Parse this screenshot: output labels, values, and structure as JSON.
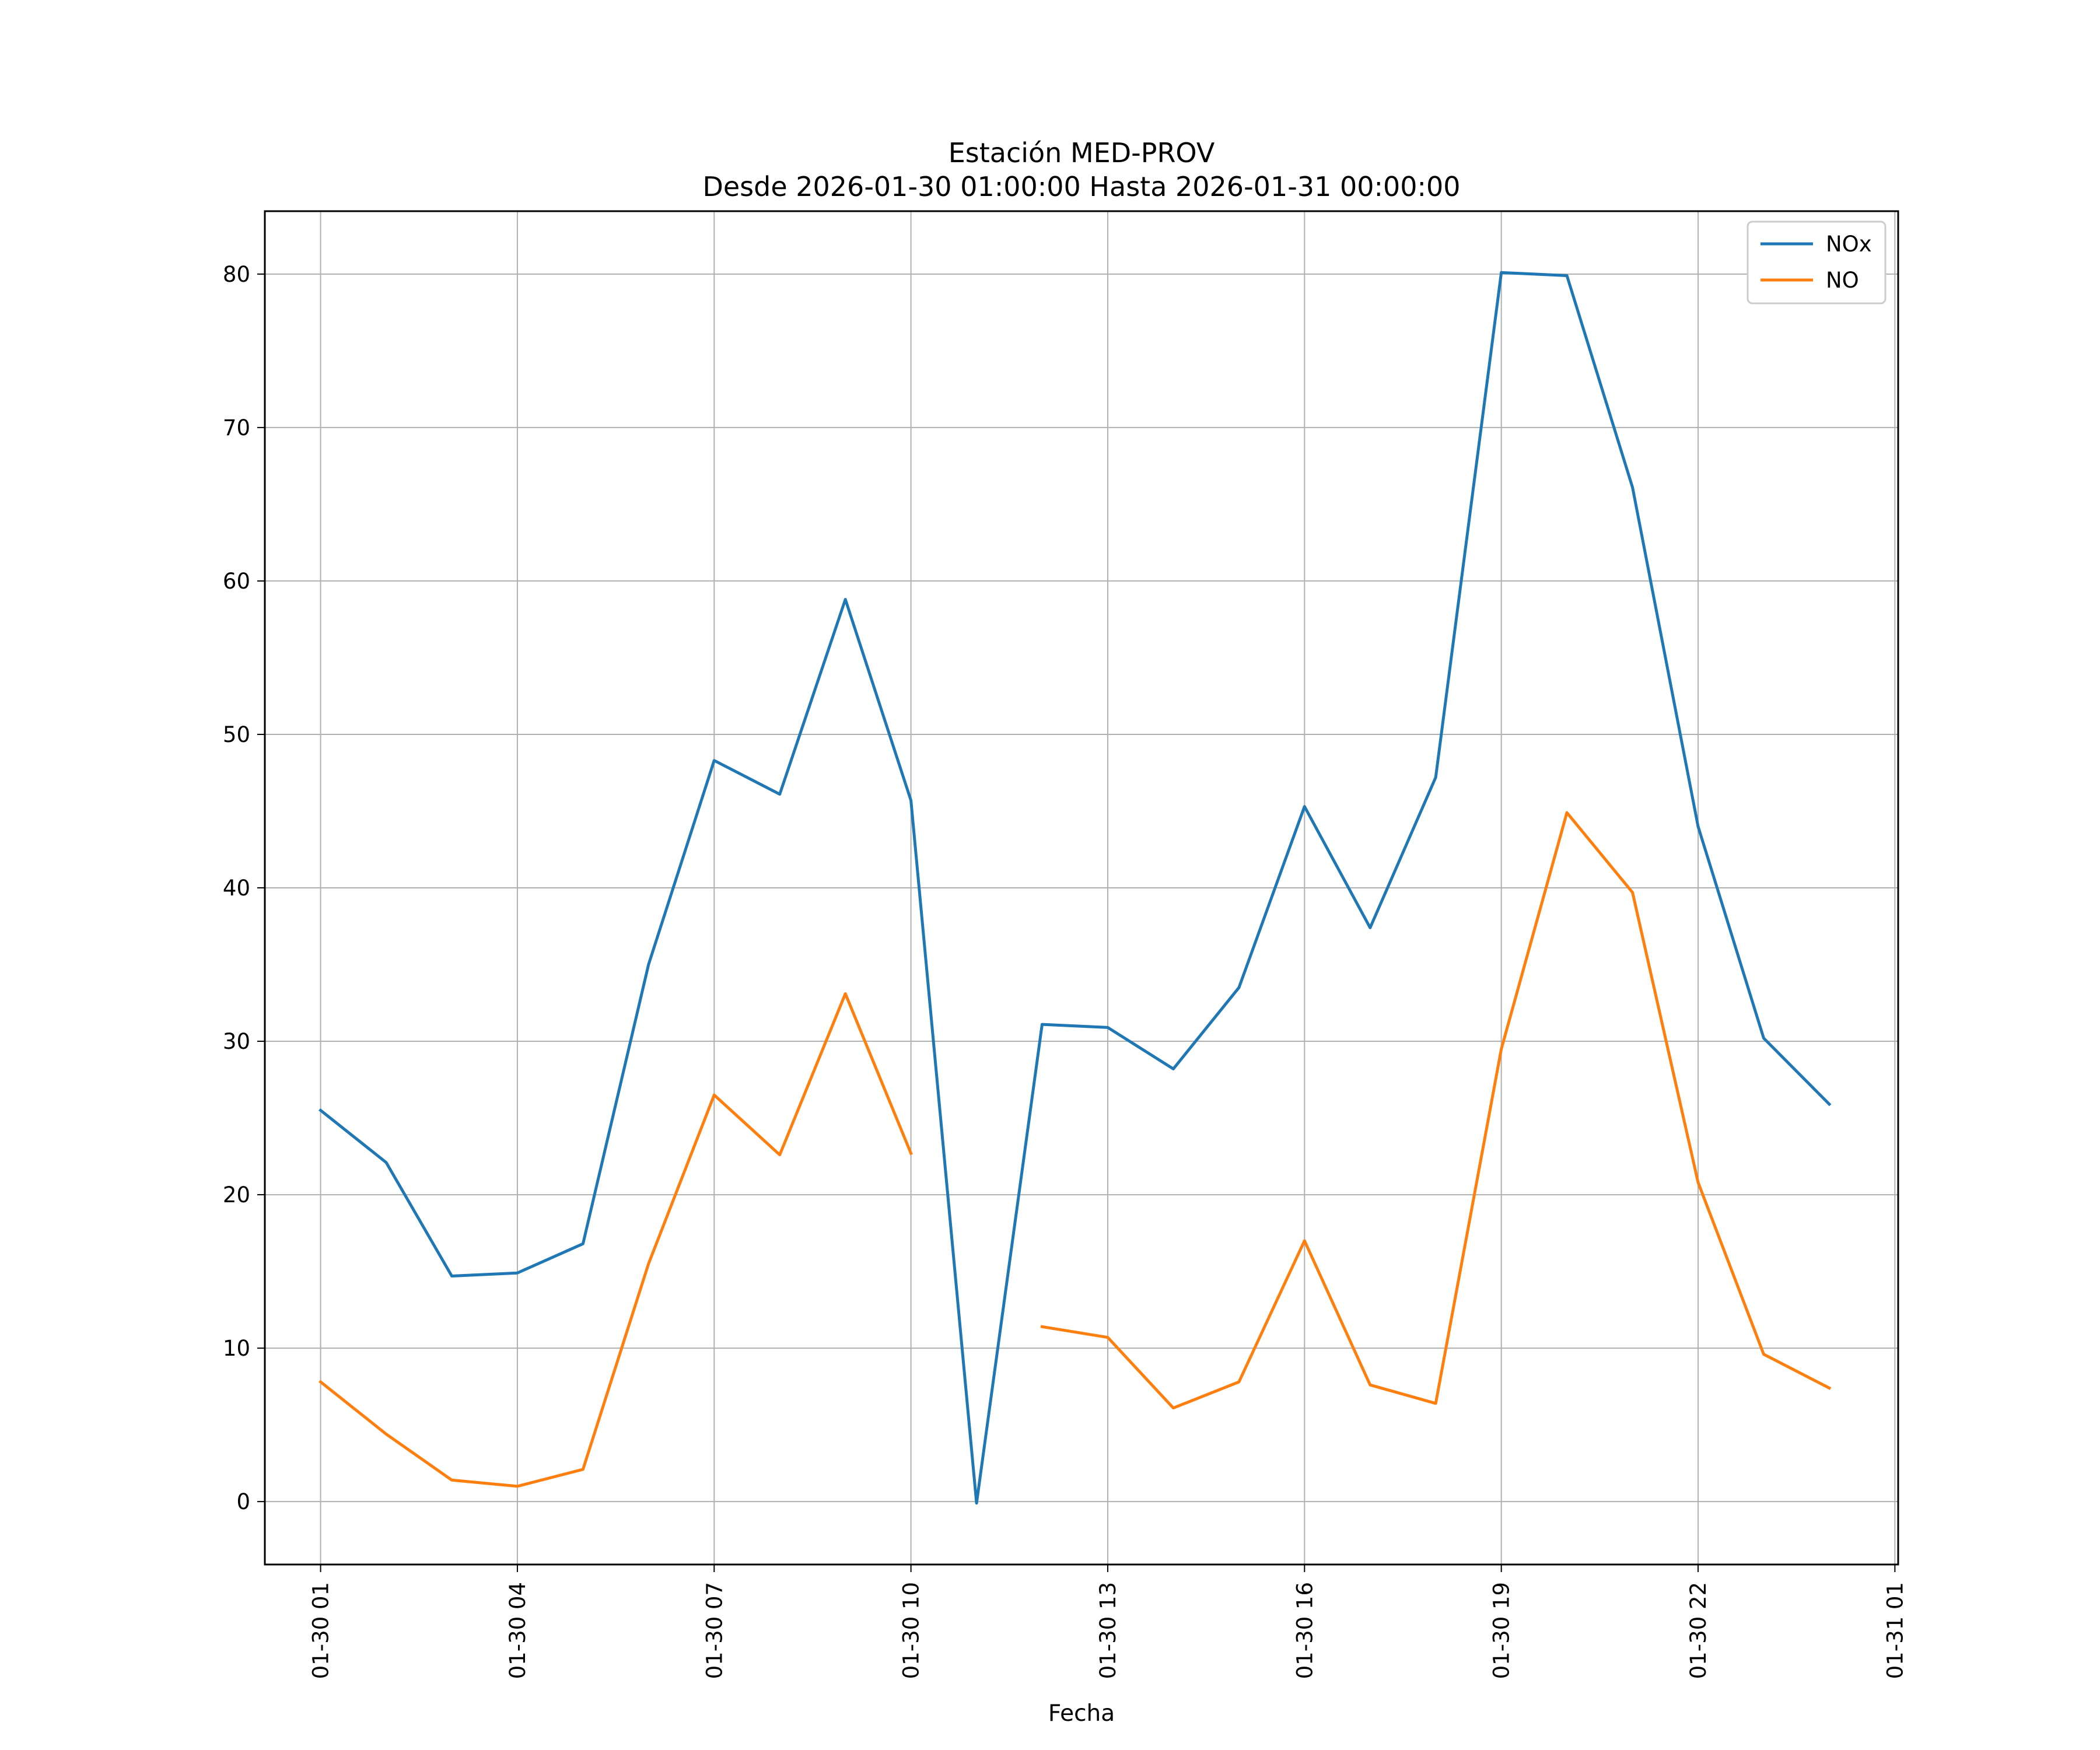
{
  "chart_data": {
    "type": "line",
    "title": "Estación MED-PROV",
    "subtitle": "Desde 2026-01-30 01:00:00 Hasta 2026-01-31 00:00:00",
    "xlabel": "Fecha",
    "ylabel": "",
    "x": [
      "2026-01-30 01:00",
      "2026-01-30 02:00",
      "2026-01-30 03:00",
      "2026-01-30 04:00",
      "2026-01-30 05:00",
      "2026-01-30 06:00",
      "2026-01-30 07:00",
      "2026-01-30 08:00",
      "2026-01-30 09:00",
      "2026-01-30 10:00",
      "2026-01-30 11:00",
      "2026-01-30 12:00",
      "2026-01-30 13:00",
      "2026-01-30 14:00",
      "2026-01-30 15:00",
      "2026-01-30 16:00",
      "2026-01-30 17:00",
      "2026-01-30 18:00",
      "2026-01-30 19:00",
      "2026-01-30 20:00",
      "2026-01-30 21:00",
      "2026-01-30 22:00",
      "2026-01-30 23:00",
      "2026-01-31 00:00"
    ],
    "series": [
      {
        "name": "NOx",
        "color": "#1f77b4",
        "values": [
          25.5,
          22.1,
          14.7,
          14.9,
          16.8,
          35.0,
          48.3,
          46.1,
          58.8,
          45.7,
          -0.1,
          31.1,
          30.9,
          28.2,
          33.5,
          45.3,
          37.4,
          47.2,
          80.1,
          79.9,
          66.1,
          44.0,
          30.2,
          25.9
        ]
      },
      {
        "name": "NO",
        "color": "#ff7f0e",
        "values": [
          7.8,
          4.4,
          1.4,
          1.0,
          2.1,
          15.5,
          26.5,
          22.6,
          33.1,
          22.7,
          null,
          11.4,
          10.7,
          6.1,
          7.8,
          17.0,
          7.6,
          6.4,
          29.5,
          44.9,
          39.7,
          20.8,
          9.6,
          7.4
        ]
      }
    ],
    "xticks": [
      "01-30 01",
      "01-30 04",
      "01-30 07",
      "01-30 10",
      "01-30 13",
      "01-30 16",
      "01-30 19",
      "01-30 22",
      "01-31 01"
    ],
    "yticks": [
      0,
      10,
      20,
      30,
      40,
      50,
      60,
      70,
      80
    ],
    "ylim": [
      -4.1,
      84.1
    ],
    "xlim": [
      "2026-01-30 00:09",
      "2026-01-31 01:03"
    ],
    "grid": true,
    "legend_position": "upper right"
  }
}
